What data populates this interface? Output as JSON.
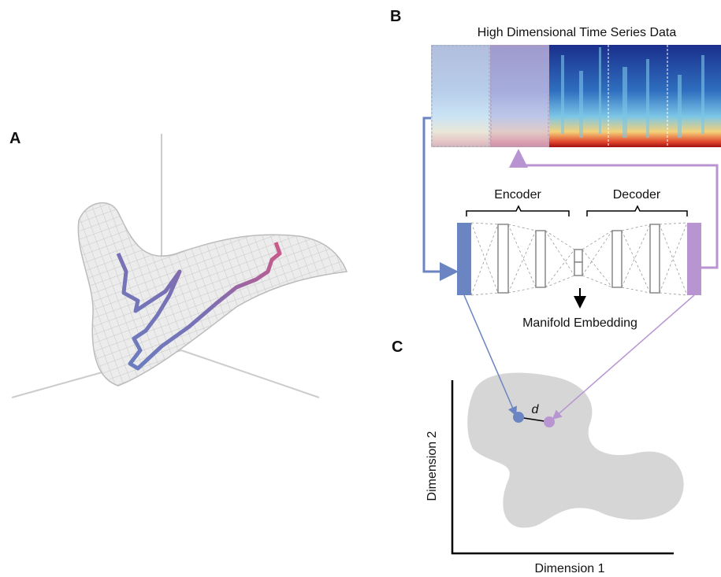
{
  "panels": {
    "a": "A",
    "b": "B",
    "c": "C"
  },
  "heatmap": {
    "title": "High Dimensional Time Series Data"
  },
  "network": {
    "encoder": "Encoder",
    "decoder": "Decoder",
    "embedding": "Manifold Embedding"
  },
  "embedding_plot": {
    "distance_label": "d",
    "x_label": "Dimension 1",
    "y_label": "Dimension 2"
  }
}
